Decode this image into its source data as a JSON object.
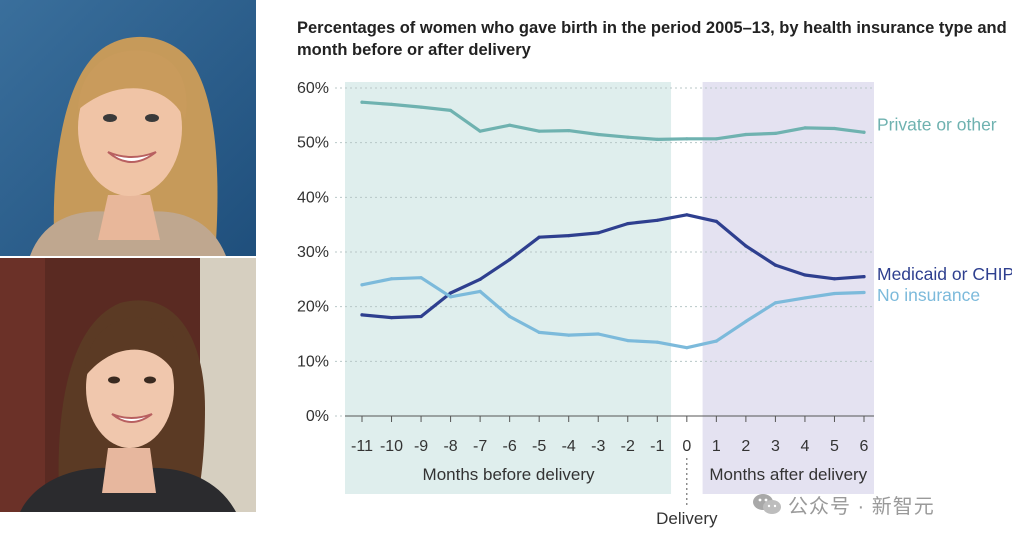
{
  "photos": [
    {
      "name": "portrait-blonde-woman"
    },
    {
      "name": "portrait-brunette-woman"
    }
  ],
  "chart_data": {
    "type": "line",
    "title": "Percentages of women who gave birth in the period 2005–13, by health insurance type and\nmonth before or after delivery",
    "x": [
      -11,
      -10,
      -9,
      -8,
      -7,
      -6,
      -5,
      -4,
      -3,
      -2,
      -1,
      0,
      1,
      2,
      3,
      4,
      5,
      6
    ],
    "x_tick_labels": [
      "-11",
      "-10",
      "-9",
      "-8",
      "-7",
      "-6",
      "-5",
      "-4",
      "-3",
      "-2",
      "-1",
      "0",
      "1",
      "2",
      "3",
      "4",
      "5",
      "6"
    ],
    "ylim": [
      0,
      60
    ],
    "y_ticks": [
      0,
      10,
      20,
      30,
      40,
      50,
      60
    ],
    "y_tick_labels": [
      "0%",
      "10%",
      "20%",
      "30%",
      "40%",
      "50%",
      "60%"
    ],
    "grid": "horizontal",
    "series": [
      {
        "name": "Private or other",
        "color": "#6fb2b0",
        "values": [
          57.4,
          57.0,
          56.5,
          55.9,
          52.1,
          53.2,
          52.1,
          52.2,
          51.5,
          51.0,
          50.6,
          50.7,
          50.7,
          51.5,
          51.7,
          52.7,
          52.6,
          51.9
        ]
      },
      {
        "name": "Medicaid or CHIP",
        "color": "#2e3f8f",
        "values": [
          18.5,
          18.0,
          18.2,
          22.5,
          25.0,
          28.6,
          32.7,
          33.0,
          33.5,
          35.2,
          35.8,
          36.8,
          35.6,
          31.1,
          27.6,
          25.8,
          25.1,
          25.5
        ]
      },
      {
        "name": "No insurance",
        "color": "#7cbadb",
        "values": [
          24.0,
          25.1,
          25.3,
          21.8,
          22.8,
          18.2,
          15.3,
          14.8,
          15.0,
          13.8,
          13.5,
          12.5,
          13.7,
          17.3,
          20.7,
          21.6,
          22.4,
          22.6
        ]
      }
    ],
    "annotations": {
      "before_label": "Months before delivery",
      "after_label": "Months after delivery",
      "delivery_label": "Delivery"
    },
    "colors": {
      "before_shade": "#dfeeed",
      "after_shade": "#e4e2f1",
      "axis_text": "#333333",
      "grid": "#b8c7c7"
    }
  },
  "watermark": {
    "text": "公众号 · 新智元",
    "icon": "wechat-icon"
  }
}
